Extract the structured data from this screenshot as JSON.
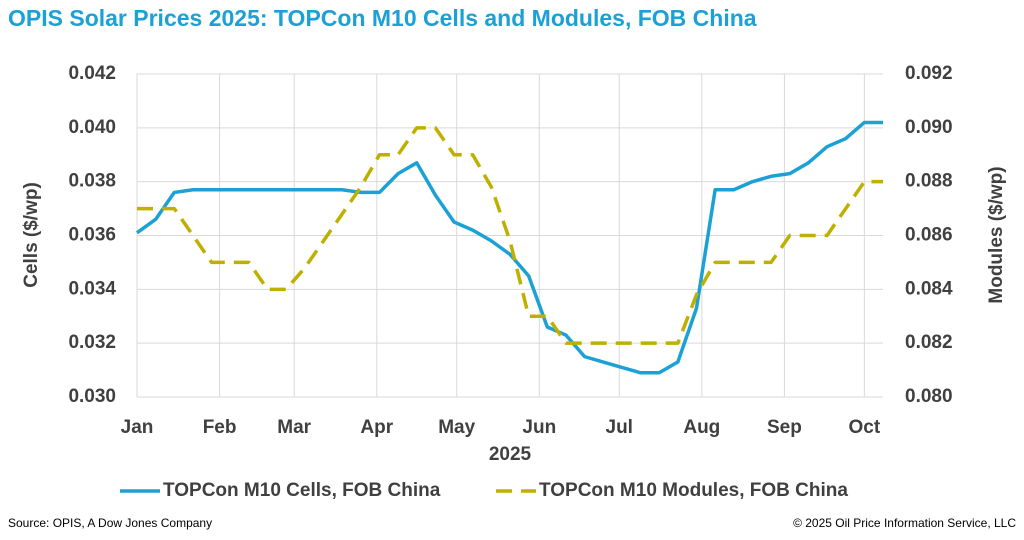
{
  "chart_data": {
    "type": "line",
    "title": "OPIS Solar Prices 2025: TOPCon M10 Cells and Modules, FOB China",
    "x_label": "2025",
    "y_label": "Cells ($/wp)",
    "y2_label": "Modules ($/wp)",
    "source": "Source: OPIS, A Dow Jones Company",
    "copyright": "© 2025 Oil Price Information Service, LLC",
    "grid": true,
    "legend": "bottom",
    "xlim": [
      0,
      280
    ],
    "xticks": [
      {
        "value": 0,
        "label": "Jan"
      },
      {
        "value": 31,
        "label": "Feb"
      },
      {
        "value": 59,
        "label": "Mar"
      },
      {
        "value": 90,
        "label": "Apr"
      },
      {
        "value": 120,
        "label": "May"
      },
      {
        "value": 151,
        "label": "Jun"
      },
      {
        "value": 181,
        "label": "Jul"
      },
      {
        "value": 212,
        "label": "Aug"
      },
      {
        "value": 243,
        "label": "Sep"
      },
      {
        "value": 273,
        "label": "Oct"
      }
    ],
    "ylim": [
      0.03,
      0.042
    ],
    "yticks": [
      {
        "value": 0.03,
        "label": "0.030"
      },
      {
        "value": 0.032,
        "label": "0.032"
      },
      {
        "value": 0.034,
        "label": "0.034"
      },
      {
        "value": 0.036,
        "label": "0.036"
      },
      {
        "value": 0.038,
        "label": "0.038"
      },
      {
        "value": 0.04,
        "label": "0.040"
      },
      {
        "value": 0.042,
        "label": "0.042"
      }
    ],
    "y2lim": [
      0.08,
      0.092
    ],
    "y2ticks": [
      {
        "value": 0.08,
        "label": "0.080"
      },
      {
        "value": 0.082,
        "label": "0.082"
      },
      {
        "value": 0.084,
        "label": "0.084"
      },
      {
        "value": 0.086,
        "label": "0.086"
      },
      {
        "value": 0.088,
        "label": "0.088"
      },
      {
        "value": 0.09,
        "label": "0.090"
      },
      {
        "value": 0.092,
        "label": "0.092"
      }
    ],
    "x": [
      0,
      7,
      14,
      21,
      28,
      35,
      42,
      49,
      56,
      63,
      70,
      77,
      84,
      91,
      98,
      105,
      112,
      119,
      126,
      133,
      140,
      147,
      154,
      161,
      168,
      175,
      182,
      189,
      196,
      203,
      210,
      217,
      224,
      231,
      238,
      245,
      252,
      259,
      266,
      273,
      280
    ],
    "series": [
      {
        "name": "TOPCon M10 Cells, FOB China",
        "color": "#1ba1d6",
        "style": "solid",
        "values": [
          0.0361,
          0.0366,
          0.0376,
          0.0377,
          0.0377,
          0.0377,
          0.0377,
          0.0377,
          0.0377,
          0.0377,
          0.0377,
          0.0377,
          0.0376,
          0.0376,
          0.0383,
          0.0387,
          0.0375,
          0.0365,
          0.0362,
          0.0358,
          0.0353,
          0.0345,
          0.0326,
          0.0323,
          0.0315,
          0.0313,
          0.0311,
          0.0309,
          0.0309,
          0.0313,
          0.0333,
          0.0377,
          0.0377,
          0.038,
          0.0382,
          0.0383,
          0.0387,
          0.0393,
          0.0396,
          0.0402,
          0.0402
        ]
      },
      {
        "name": "TOPCon M10 Modules, FOB China",
        "color": "#bfb000",
        "style": "dashed",
        "axis": "y2",
        "values": [
          0.087,
          0.087,
          0.087,
          0.086,
          0.085,
          0.085,
          0.085,
          0.084,
          0.084,
          0.0848,
          0.0858,
          0.0868,
          0.0878,
          0.089,
          0.089,
          0.09,
          0.09,
          0.089,
          0.089,
          0.0878,
          0.0858,
          0.083,
          0.083,
          0.082,
          0.082,
          0.082,
          0.082,
          0.082,
          0.082,
          0.082,
          0.0838,
          0.085,
          0.085,
          0.085,
          0.085,
          0.086,
          0.086,
          0.086,
          0.087,
          0.088,
          0.088
        ]
      }
    ]
  }
}
